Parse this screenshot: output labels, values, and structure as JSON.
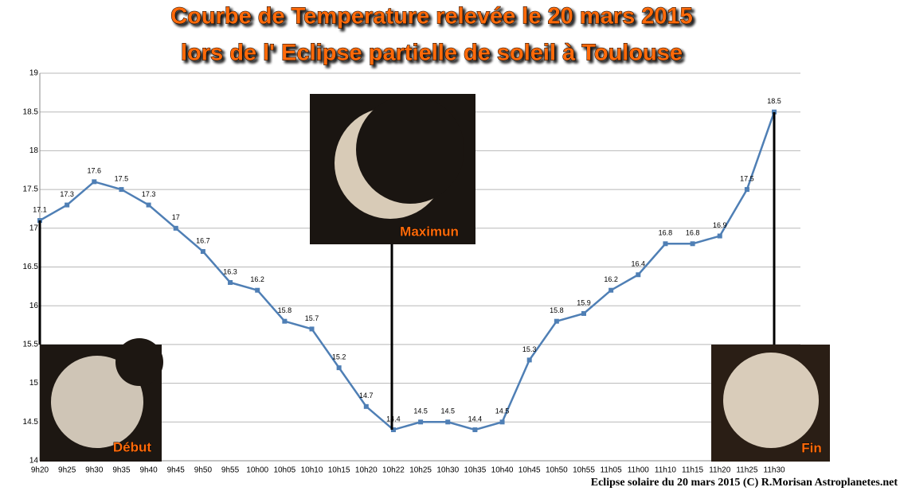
{
  "chart_data": {
    "type": "line",
    "title": "Courbe de Temperature relevée le 20 mars 2015",
    "subtitle": "lors de l' Eclipse partielle de soleil à Toulouse",
    "categories": [
      "9h20",
      "9h25",
      "9h30",
      "9h35",
      "9h40",
      "9h45",
      "9h50",
      "9h55",
      "10h00",
      "10h05",
      "10h10",
      "10h15",
      "10h20",
      "10h22",
      "10h25",
      "10h30",
      "10h35",
      "10h40",
      "10h45",
      "10h50",
      "10h55",
      "11h05",
      "11h00",
      "11h10",
      "11h15",
      "11h20",
      "11h25",
      "11h30"
    ],
    "values": [
      17.1,
      17.3,
      17.6,
      17.5,
      17.3,
      17,
      16.7,
      16.3,
      16.2,
      15.8,
      15.7,
      15.2,
      14.7,
      14.4,
      14.5,
      14.5,
      14.4,
      14.5,
      15.3,
      15.8,
      15.9,
      16.2,
      16.4,
      16.8,
      16.8,
      16.9,
      17.5,
      18.5
    ],
    "color": "#4f7fb5",
    "ylim": [
      14,
      19
    ],
    "yticks": [
      14,
      14.5,
      15,
      15.5,
      16,
      16.5,
      17,
      17.5,
      18,
      18.5,
      19
    ],
    "grid": true,
    "annotations": [
      "Début",
      "Maximun",
      "Fin"
    ],
    "source": "Eclipse solaire du 20 mars 2015  (C) R.Morisan  Astroplanetes.net"
  }
}
